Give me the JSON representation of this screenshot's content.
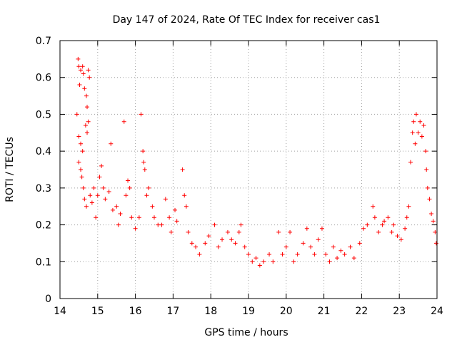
{
  "chart_data": {
    "type": "scatter",
    "title": "Day 147 of 2024, Rate Of TEC Index for receiver cas1",
    "xlabel": "GPS time / hours",
    "ylabel": "ROTI / TECUs",
    "xlim": [
      14,
      24
    ],
    "ylim": [
      0,
      0.7
    ],
    "x_ticks": [
      14,
      15,
      16,
      17,
      18,
      19,
      20,
      21,
      22,
      23,
      24
    ],
    "x_tick_labels": [
      "14",
      "15",
      "16",
      "17",
      "18",
      "19",
      "20",
      "21",
      "22",
      "23",
      "24"
    ],
    "y_ticks": [
      0,
      0.1,
      0.2,
      0.3,
      0.4,
      0.5,
      0.6,
      0.7
    ],
    "y_tick_labels": [
      "0",
      "0.1",
      "0.2",
      "0.3",
      "0.4",
      "0.5",
      "0.6",
      "0.7"
    ],
    "grid": true,
    "marker": "+",
    "color": "#ff0000",
    "series": [
      {
        "name": "ROTI",
        "points": [
          [
            14.48,
            0.65
          ],
          [
            14.5,
            0.63
          ],
          [
            14.52,
            0.58
          ],
          [
            14.55,
            0.62
          ],
          [
            14.6,
            0.63
          ],
          [
            14.62,
            0.61
          ],
          [
            14.65,
            0.57
          ],
          [
            14.7,
            0.55
          ],
          [
            14.75,
            0.62
          ],
          [
            14.78,
            0.6
          ],
          [
            14.72,
            0.52
          ],
          [
            14.45,
            0.5
          ],
          [
            14.5,
            0.44
          ],
          [
            14.55,
            0.42
          ],
          [
            14.6,
            0.4
          ],
          [
            14.68,
            0.47
          ],
          [
            14.72,
            0.45
          ],
          [
            14.75,
            0.48
          ],
          [
            14.5,
            0.37
          ],
          [
            14.55,
            0.35
          ],
          [
            14.58,
            0.33
          ],
          [
            14.62,
            0.3
          ],
          [
            14.65,
            0.27
          ],
          [
            14.7,
            0.25
          ],
          [
            14.8,
            0.28
          ],
          [
            14.85,
            0.26
          ],
          [
            14.9,
            0.3
          ],
          [
            14.95,
            0.22
          ],
          [
            15.0,
            0.28
          ],
          [
            15.05,
            0.33
          ],
          [
            15.1,
            0.36
          ],
          [
            15.15,
            0.3
          ],
          [
            15.2,
            0.27
          ],
          [
            15.3,
            0.29
          ],
          [
            15.35,
            0.42
          ],
          [
            15.4,
            0.24
          ],
          [
            15.5,
            0.25
          ],
          [
            15.55,
            0.2
          ],
          [
            15.6,
            0.23
          ],
          [
            15.7,
            0.48
          ],
          [
            15.75,
            0.28
          ],
          [
            15.8,
            0.32
          ],
          [
            15.85,
            0.3
          ],
          [
            15.9,
            0.22
          ],
          [
            16.0,
            0.19
          ],
          [
            16.1,
            0.22
          ],
          [
            16.15,
            0.5
          ],
          [
            16.2,
            0.4
          ],
          [
            16.22,
            0.37
          ],
          [
            16.25,
            0.35
          ],
          [
            16.3,
            0.28
          ],
          [
            16.35,
            0.3
          ],
          [
            16.45,
            0.25
          ],
          [
            16.5,
            0.22
          ],
          [
            16.6,
            0.2
          ],
          [
            16.7,
            0.2
          ],
          [
            16.8,
            0.27
          ],
          [
            16.9,
            0.22
          ],
          [
            16.95,
            0.18
          ],
          [
            17.05,
            0.24
          ],
          [
            17.1,
            0.21
          ],
          [
            17.25,
            0.35
          ],
          [
            17.3,
            0.28
          ],
          [
            17.35,
            0.25
          ],
          [
            17.4,
            0.18
          ],
          [
            17.5,
            0.15
          ],
          [
            17.6,
            0.14
          ],
          [
            17.7,
            0.12
          ],
          [
            17.85,
            0.15
          ],
          [
            17.95,
            0.17
          ],
          [
            18.1,
            0.2
          ],
          [
            18.2,
            0.14
          ],
          [
            18.3,
            0.16
          ],
          [
            18.45,
            0.18
          ],
          [
            18.55,
            0.16
          ],
          [
            18.65,
            0.15
          ],
          [
            18.75,
            0.18
          ],
          [
            18.8,
            0.2
          ],
          [
            18.9,
            0.14
          ],
          [
            19.0,
            0.12
          ],
          [
            19.1,
            0.1
          ],
          [
            19.2,
            0.11
          ],
          [
            19.3,
            0.09
          ],
          [
            19.4,
            0.1
          ],
          [
            19.55,
            0.12
          ],
          [
            19.65,
            0.1
          ],
          [
            19.8,
            0.18
          ],
          [
            19.9,
            0.12
          ],
          [
            20.0,
            0.14
          ],
          [
            20.1,
            0.18
          ],
          [
            20.2,
            0.1
          ],
          [
            20.3,
            0.12
          ],
          [
            20.45,
            0.15
          ],
          [
            20.55,
            0.19
          ],
          [
            20.65,
            0.14
          ],
          [
            20.75,
            0.12
          ],
          [
            20.85,
            0.16
          ],
          [
            20.95,
            0.19
          ],
          [
            21.05,
            0.12
          ],
          [
            21.15,
            0.1
          ],
          [
            21.25,
            0.14
          ],
          [
            21.35,
            0.11
          ],
          [
            21.45,
            0.13
          ],
          [
            21.55,
            0.12
          ],
          [
            21.7,
            0.14
          ],
          [
            21.8,
            0.11
          ],
          [
            21.95,
            0.15
          ],
          [
            22.05,
            0.19
          ],
          [
            22.15,
            0.2
          ],
          [
            22.3,
            0.25
          ],
          [
            22.35,
            0.22
          ],
          [
            22.45,
            0.18
          ],
          [
            22.55,
            0.2
          ],
          [
            22.6,
            0.21
          ],
          [
            22.7,
            0.22
          ],
          [
            22.8,
            0.18
          ],
          [
            22.85,
            0.2
          ],
          [
            22.95,
            0.17
          ],
          [
            23.05,
            0.16
          ],
          [
            23.15,
            0.19
          ],
          [
            23.2,
            0.22
          ],
          [
            23.25,
            0.25
          ],
          [
            23.3,
            0.37
          ],
          [
            23.35,
            0.45
          ],
          [
            23.38,
            0.48
          ],
          [
            23.42,
            0.42
          ],
          [
            23.45,
            0.5
          ],
          [
            23.5,
            0.45
          ],
          [
            23.55,
            0.48
          ],
          [
            23.6,
            0.44
          ],
          [
            23.65,
            0.47
          ],
          [
            23.7,
            0.4
          ],
          [
            23.72,
            0.35
          ],
          [
            23.75,
            0.3
          ],
          [
            23.8,
            0.27
          ],
          [
            23.85,
            0.23
          ],
          [
            23.9,
            0.21
          ],
          [
            23.95,
            0.18
          ],
          [
            23.98,
            0.15
          ]
        ]
      }
    ]
  }
}
